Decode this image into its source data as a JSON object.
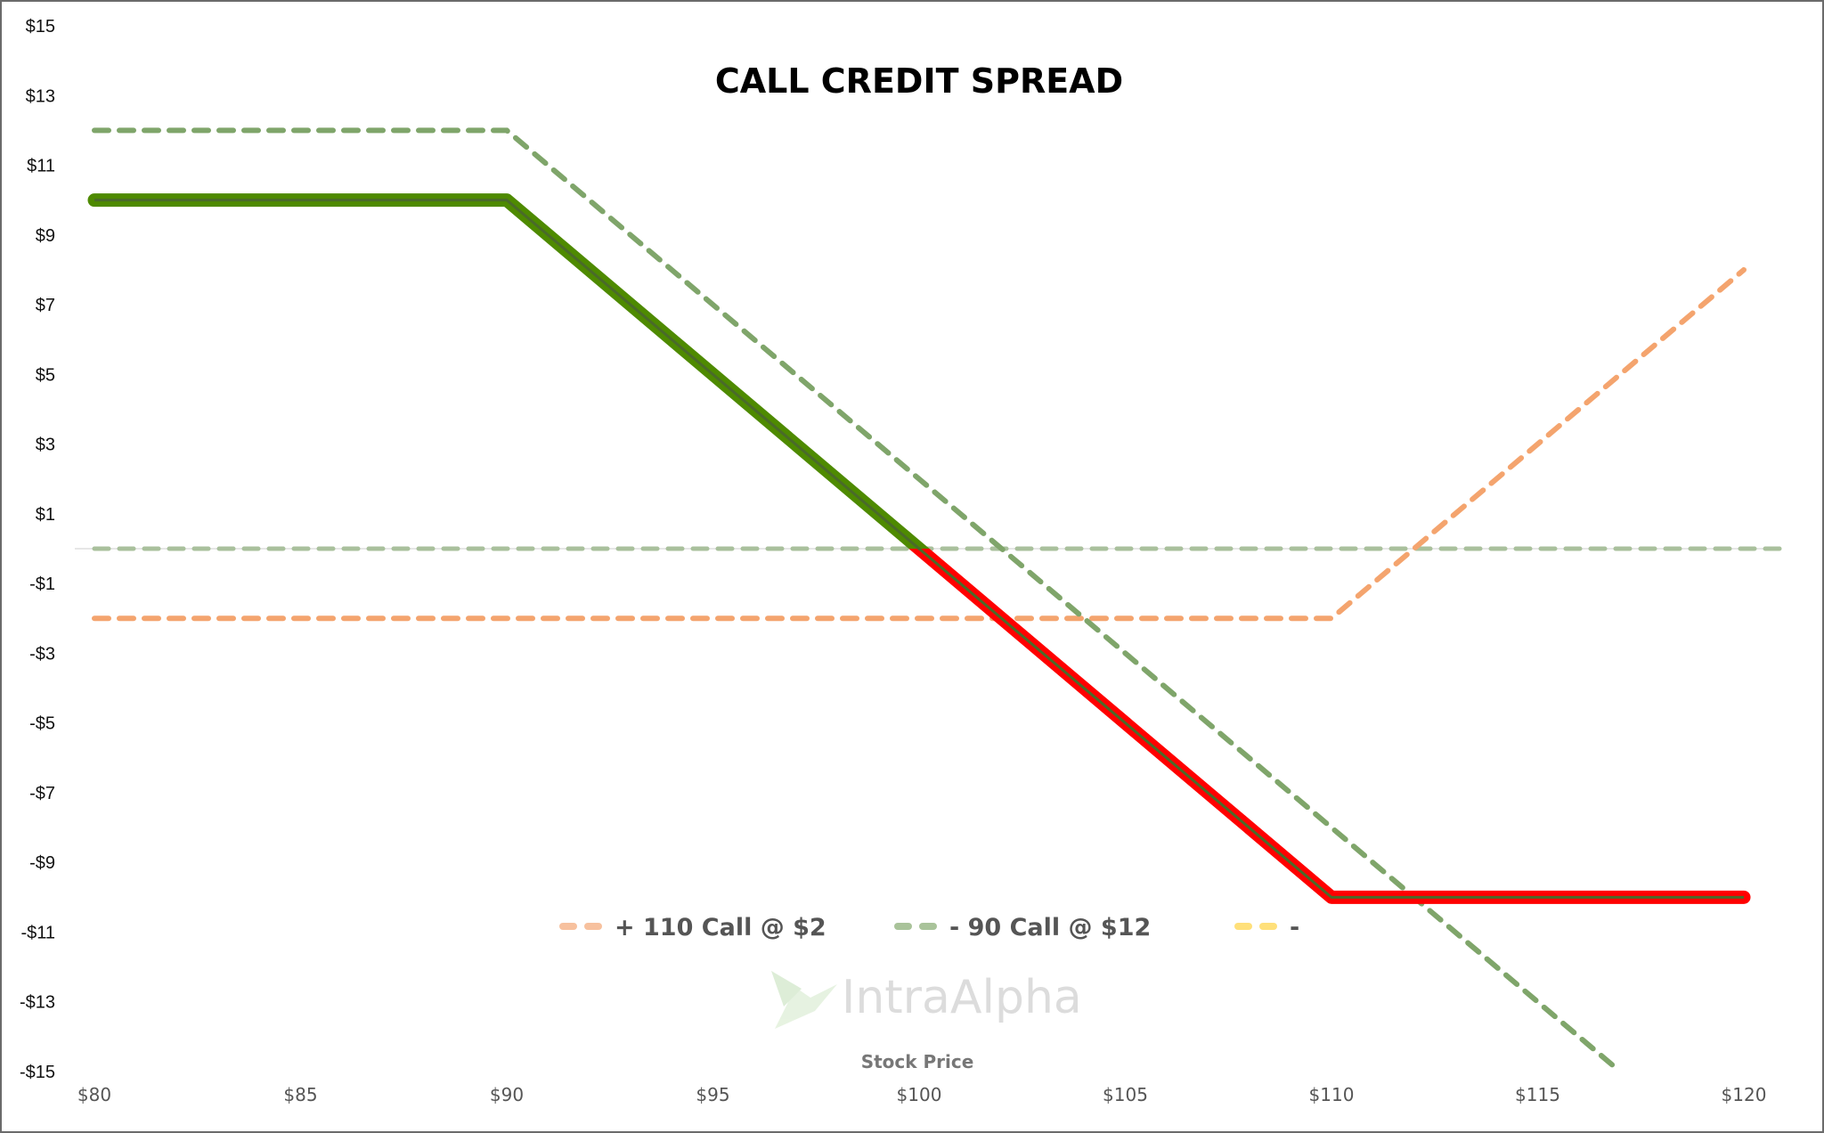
{
  "chart_data": {
    "type": "line",
    "title": "CALL CREDIT SPREAD",
    "xlabel": "Stock Price",
    "ylabel": "",
    "xlim": [
      80,
      120
    ],
    "ylim": [
      -15,
      15
    ],
    "x_ticks": [
      "$80",
      "$85",
      "$90",
      "$95",
      "$100",
      "$105",
      "$110",
      "$115",
      "$120"
    ],
    "x_tick_values": [
      80,
      85,
      90,
      95,
      100,
      105,
      110,
      115,
      120
    ],
    "y_ticks": [
      "$15",
      "$13",
      "$11",
      "$9",
      "$7",
      "$5",
      "$3",
      "$1",
      "-$1",
      "-$3",
      "-$5",
      "-$7",
      "-$9",
      "-$11",
      "-$13",
      "-$15"
    ],
    "y_tick_values": [
      15,
      13,
      11,
      9,
      7,
      5,
      3,
      1,
      -1,
      -3,
      -5,
      -7,
      -9,
      -11,
      -13,
      -15
    ],
    "grid": false,
    "legend_position": "bottom-center",
    "series": [
      {
        "name": "+ 110 Call @ $2",
        "style": "dashed",
        "color": "#f4a46e",
        "x": [
          80,
          110,
          120
        ],
        "y": [
          -2,
          -2,
          8
        ]
      },
      {
        "name": "- 90 Call @ $12",
        "style": "dashed",
        "color": "#7fa56a",
        "x": [
          80,
          90,
          117
        ],
        "y": [
          12,
          12,
          -15
        ]
      },
      {
        "name": "-",
        "style": "dashed",
        "color": "#ffd966",
        "x": [
          80,
          121
        ],
        "y": [
          0,
          0
        ]
      },
      {
        "style": "solid",
        "color_profit": "#4e8a00",
        "color_loss": "#ff0000",
        "x": [
          80,
          90,
          110,
          120
        ],
        "y": [
          10,
          10,
          -10,
          -10
        ]
      }
    ],
    "zero_line_color": "#a9c09c",
    "legend_swatch_colors": [
      "#f7c19e",
      "#a9c39a",
      "#ffe07a"
    ]
  },
  "watermark": {
    "text": "IntraAlpha"
  }
}
